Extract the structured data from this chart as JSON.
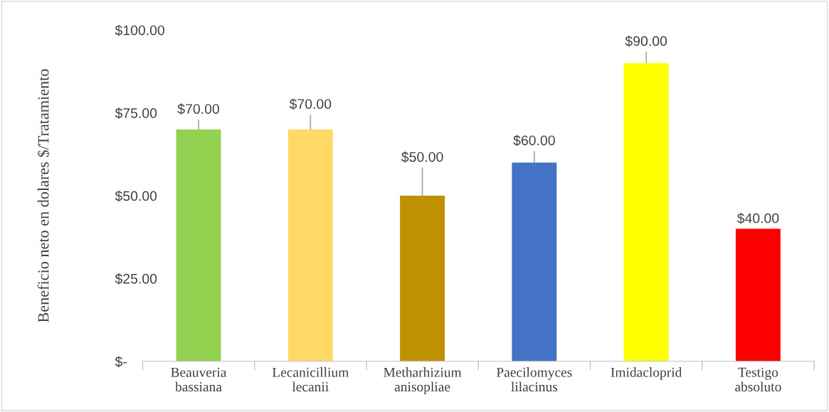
{
  "chart_data": {
    "type": "bar",
    "ylabel": "Beneficio neto en dolares $/Tratamiento",
    "categories": [
      "Beauveria\nbassiana",
      "Lecanicillium\nlecanii",
      "Metharhizium\nanisopliae",
      "Paecilomyces\nlilacinus",
      "Imidacloprid",
      "Testigo\nabsoluto"
    ],
    "values": [
      70,
      70,
      50,
      60,
      90,
      40
    ],
    "colors": [
      "#92d050",
      "#ffd966",
      "#bf9000",
      "#4472c4",
      "#ffff00",
      "#ff0000"
    ],
    "errors": [
      [
        70,
        73
      ],
      [
        70,
        74.5
      ],
      [
        50,
        58.5
      ],
      [
        60,
        63.5
      ],
      [
        90,
        93.5
      ],
      null
    ],
    "value_labels": [
      "$70.00",
      "$70.00",
      "$50.00",
      "$60.00",
      "$90.00",
      "$40.00"
    ],
    "ylim": [
      0,
      100
    ],
    "yticks": [
      {
        "value": 0,
        "label": "$-"
      },
      {
        "value": 25,
        "label": "$25.00"
      },
      {
        "value": 50,
        "label": "$50.00"
      },
      {
        "value": 75,
        "label": "$75.00"
      },
      {
        "value": 100,
        "label": "$100.00"
      }
    ],
    "grid": false,
    "legend": false
  }
}
